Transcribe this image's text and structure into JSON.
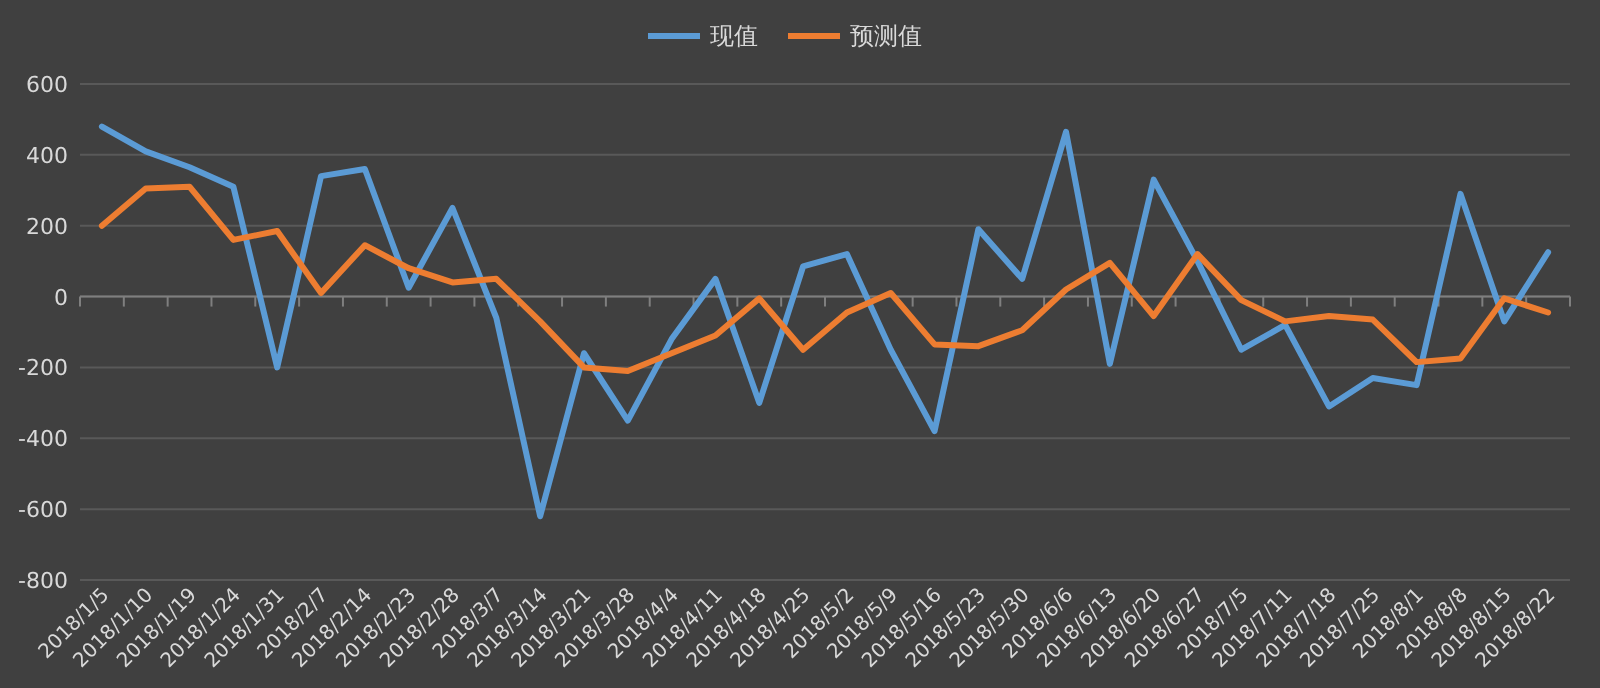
{
  "chart_data": {
    "type": "line",
    "categories": [
      "2018/1/5",
      "2018/1/10",
      "2018/1/19",
      "2018/1/24",
      "2018/1/31",
      "2018/2/7",
      "2018/2/14",
      "2018/2/23",
      "2018/2/28",
      "2018/3/7",
      "2018/3/14",
      "2018/3/21",
      "2018/3/28",
      "2018/4/4",
      "2018/4/11",
      "2018/4/18",
      "2018/4/25",
      "2018/5/2",
      "2018/5/9",
      "2018/5/16",
      "2018/5/23",
      "2018/5/30",
      "2018/6/6",
      "2018/6/13",
      "2018/6/20",
      "2018/6/27",
      "2018/7/5",
      "2018/7/11",
      "2018/7/18",
      "2018/7/25",
      "2018/8/1",
      "2018/8/8",
      "2018/8/15",
      "2018/8/22"
    ],
    "series": [
      {
        "name": "现值",
        "color": "#5b9bd5",
        "values": [
          480,
          410,
          365,
          310,
          -200,
          340,
          360,
          25,
          250,
          -60,
          -620,
          -160,
          -350,
          -120,
          50,
          -300,
          85,
          120,
          -150,
          -380,
          190,
          50,
          465,
          -190,
          330,
          100,
          -150,
          -80,
          -310,
          -230,
          -250,
          290,
          -70,
          125
        ]
      },
      {
        "name": "预测值",
        "color": "#ed7d31",
        "values": [
          200,
          305,
          310,
          160,
          185,
          10,
          145,
          80,
          40,
          50,
          -70,
          -200,
          -210,
          -160,
          -110,
          -5,
          -150,
          -45,
          10,
          -135,
          -140,
          -95,
          20,
          95,
          -55,
          120,
          -10,
          -70,
          -55,
          -65,
          -185,
          -175,
          -5,
          -45
        ]
      }
    ],
    "ylim": [
      -800,
      600
    ],
    "yticks": [
      -800,
      -600,
      -400,
      -200,
      0,
      200,
      400,
      600
    ],
    "grid": "y",
    "legend": "top",
    "marker": "none",
    "line_style": "solid"
  }
}
